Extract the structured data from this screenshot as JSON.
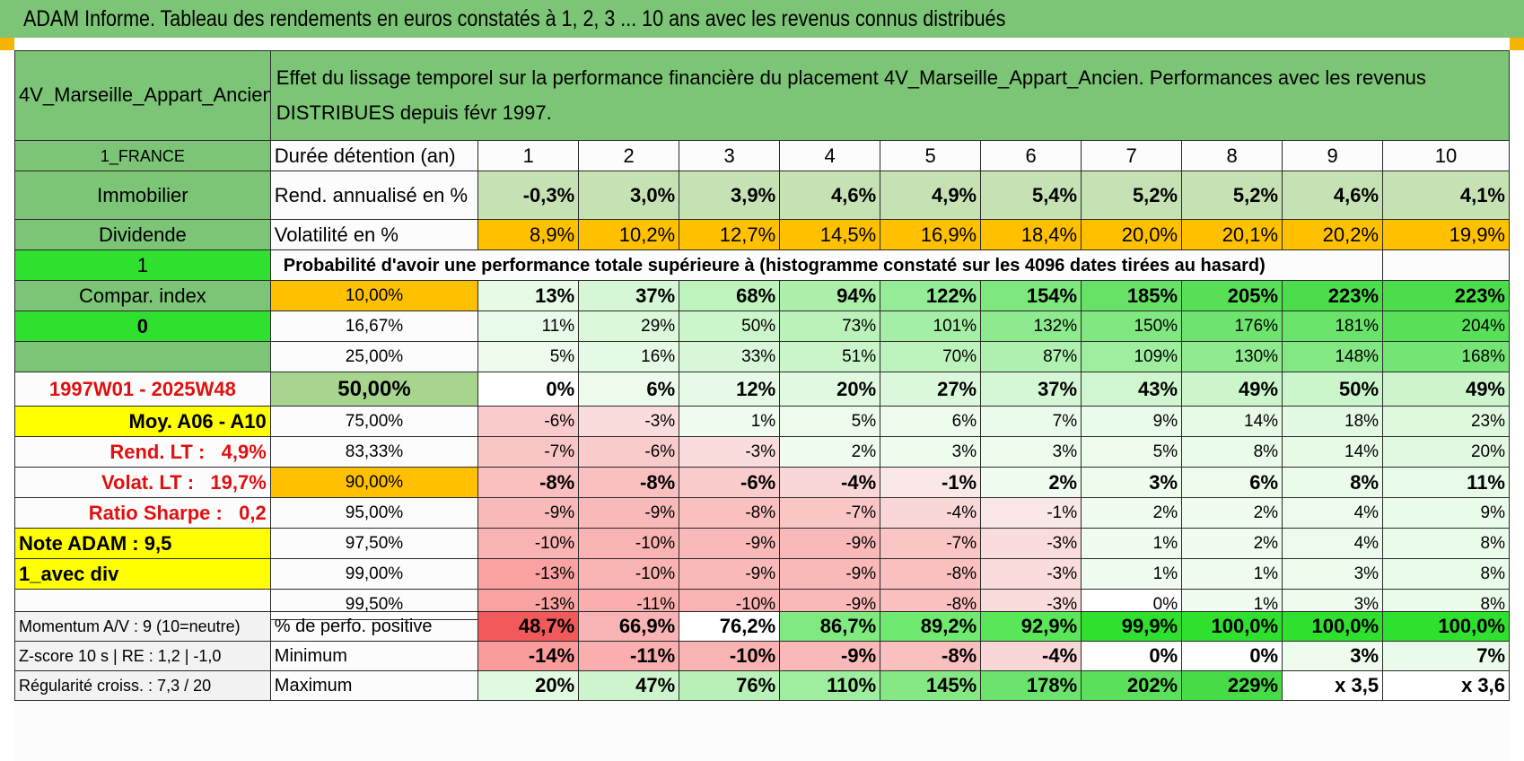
{
  "title": "ADAM Informe. Tableau des rendements en euros constatés à 1, 2, 3 ... 10 ans avec les revenus connus distribués",
  "placement_name": "4V_Marseille_Appart_Ancien",
  "heading": "Effet du lissage temporel sur la performance financière du placement 4V_Marseille_Appart_Ancien. Performances avec les revenus DISTRIBUES depuis févr 1997.",
  "side": {
    "country": "1_FRANCE",
    "category": "Immobilier",
    "type": "Dividende",
    "flag1": "1",
    "compar": "Compar. index",
    "flag2": "0",
    "period": "1997W01 - 2025W48",
    "moy": "Moy. A06 - A10",
    "rend_lt": "Rend. LT :   4,9%",
    "volat_lt": "Volat. LT :   19,7%",
    "sharpe": "Ratio Sharpe :   0,2",
    "note": "Note ADAM : 9,5",
    "mode": "1_avec div"
  },
  "labels": {
    "duration": "Durée détention (an)",
    "rend": "Rend. annualisé en %",
    "vol": "Volatilité en %",
    "prob_title": "Probabilité d'avoir une performance totale supérieure à (histogramme constaté sur les 4096 dates tirées au hasard)"
  },
  "years": [
    "1",
    "2",
    "3",
    "4",
    "5",
    "6",
    "7",
    "8",
    "9",
    "10"
  ],
  "rend": [
    "-0,3%",
    "3,0%",
    "3,9%",
    "4,6%",
    "4,9%",
    "5,4%",
    "5,2%",
    "5,2%",
    "4,6%",
    "4,1%"
  ],
  "vol": [
    "8,9%",
    "10,2%",
    "12,7%",
    "14,5%",
    "16,9%",
    "18,4%",
    "20,0%",
    "20,1%",
    "20,2%",
    "19,9%"
  ],
  "prob_rows": [
    {
      "p": "10,00%",
      "vals": [
        "13%",
        "37%",
        "68%",
        "94%",
        "122%",
        "154%",
        "185%",
        "205%",
        "223%",
        "223%"
      ]
    },
    {
      "p": "16,67%",
      "vals": [
        "11%",
        "29%",
        "50%",
        "73%",
        "101%",
        "132%",
        "150%",
        "176%",
        "181%",
        "204%"
      ]
    },
    {
      "p": "25,00%",
      "vals": [
        "5%",
        "16%",
        "33%",
        "51%",
        "70%",
        "87%",
        "109%",
        "130%",
        "148%",
        "168%"
      ]
    },
    {
      "p": "50,00%",
      "vals": [
        "0%",
        "6%",
        "12%",
        "20%",
        "27%",
        "37%",
        "43%",
        "49%",
        "50%",
        "49%"
      ]
    },
    {
      "p": "75,00%",
      "vals": [
        "-6%",
        "-3%",
        "1%",
        "5%",
        "6%",
        "7%",
        "9%",
        "14%",
        "18%",
        "23%"
      ]
    },
    {
      "p": "83,33%",
      "vals": [
        "-7%",
        "-6%",
        "-3%",
        "2%",
        "3%",
        "3%",
        "5%",
        "8%",
        "14%",
        "20%"
      ]
    },
    {
      "p": "90,00%",
      "vals": [
        "-8%",
        "-8%",
        "-6%",
        "-4%",
        "-1%",
        "2%",
        "3%",
        "6%",
        "8%",
        "11%"
      ]
    },
    {
      "p": "95,00%",
      "vals": [
        "-9%",
        "-9%",
        "-8%",
        "-7%",
        "-4%",
        "-1%",
        "2%",
        "2%",
        "4%",
        "9%"
      ]
    },
    {
      "p": "97,50%",
      "vals": [
        "-10%",
        "-10%",
        "-9%",
        "-9%",
        "-7%",
        "-3%",
        "1%",
        "2%",
        "4%",
        "8%"
      ]
    },
    {
      "p": "99,00%",
      "vals": [
        "-13%",
        "-10%",
        "-9%",
        "-9%",
        "-8%",
        "-3%",
        "1%",
        "1%",
        "3%",
        "8%"
      ]
    },
    {
      "p": "99,50%",
      "vals": [
        "-13%",
        "-11%",
        "-10%",
        "-9%",
        "-8%",
        "-3%",
        "0%",
        "1%",
        "3%",
        "8%"
      ]
    }
  ],
  "bottom": [
    {
      "left": "Momentum A/V : 9 (10=neutre)",
      "label": "% de perfo. positive",
      "vals": [
        "48,7%",
        "66,9%",
        "76,2%",
        "86,7%",
        "89,2%",
        "92,9%",
        "99,9%",
        "100,0%",
        "100,0%",
        "100,0%"
      ]
    },
    {
      "left": "Z-score 10 s | RE : 1,2 | -1,0",
      "label": "Minimum",
      "vals": [
        "-14%",
        "-11%",
        "-10%",
        "-9%",
        "-8%",
        "-4%",
        "0%",
        "0%",
        "3%",
        "7%"
      ]
    },
    {
      "left": "Régularité croiss. : 7,3 / 20",
      "label": "Maximum",
      "vals": [
        "20%",
        "47%",
        "76%",
        "110%",
        "145%",
        "178%",
        "202%",
        "229%",
        "x 3,5",
        "x 3,6"
      ]
    }
  ],
  "colors": {
    "header_green": "#7cc576",
    "light_green": "#a8d58e",
    "orange": "#ffc000",
    "yellow": "#ffff00",
    "bright_green": "#2fe02f",
    "red_text": "#e01010"
  }
}
